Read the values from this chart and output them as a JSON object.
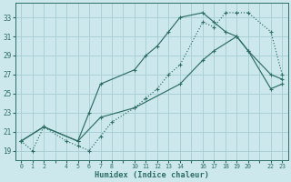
{
  "xlabel": "Humidex (Indice chaleur)",
  "bg_color": "#cce8ec",
  "grid_color": "#aad0d6",
  "line_color": "#2e6e65",
  "xtick_labels": [
    "0",
    "1",
    "2",
    "",
    "4",
    "5",
    "6",
    "7",
    "8",
    "",
    "10",
    "11",
    "12",
    "13",
    "14",
    "",
    "16",
    "17",
    "18",
    "19",
    "20",
    "",
    "22",
    "23"
  ],
  "xtick_vals": [
    0,
    1,
    2,
    3,
    4,
    5,
    6,
    7,
    8,
    9,
    10,
    11,
    12,
    13,
    14,
    15,
    16,
    17,
    18,
    19,
    20,
    21,
    22,
    23
  ],
  "yticks": [
    19,
    21,
    23,
    25,
    27,
    29,
    31,
    33
  ],
  "ylim": [
    18.0,
    34.5
  ],
  "line1_x": [
    0,
    1,
    2,
    4,
    5,
    6,
    7,
    8,
    10,
    11,
    12,
    13,
    14,
    16,
    17,
    18,
    19,
    20,
    22,
    23
  ],
  "line1_y": [
    20.0,
    19.0,
    21.5,
    20.0,
    19.5,
    19.0,
    20.5,
    22.0,
    23.5,
    24.5,
    25.5,
    27.0,
    28.0,
    32.5,
    32.0,
    33.5,
    33.5,
    33.5,
    31.5,
    27.0
  ],
  "line2_x": [
    0,
    2,
    5,
    6,
    7,
    10,
    11,
    12,
    13,
    14,
    16,
    17,
    18,
    19,
    20,
    22,
    23
  ],
  "line2_y": [
    20.0,
    21.5,
    20.0,
    23.0,
    26.0,
    27.5,
    29.0,
    30.0,
    31.5,
    33.0,
    33.5,
    32.5,
    31.5,
    31.0,
    29.5,
    27.0,
    26.5
  ],
  "line3_x": [
    0,
    2,
    5,
    7,
    10,
    14,
    16,
    17,
    19,
    20,
    22,
    23
  ],
  "line3_y": [
    20.0,
    21.5,
    20.0,
    22.5,
    23.5,
    26.0,
    28.5,
    29.5,
    31.0,
    29.5,
    25.5,
    26.0
  ]
}
